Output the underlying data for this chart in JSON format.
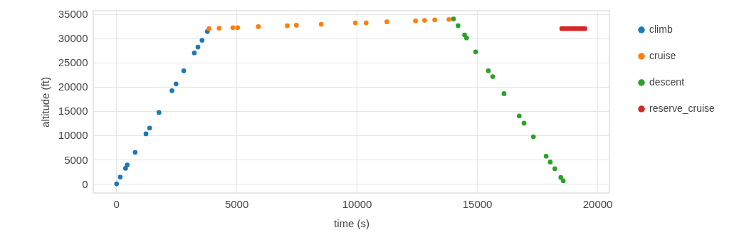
{
  "chart_data": {
    "type": "scatter",
    "xlabel": "time (s)",
    "ylabel": "altitude (ft)",
    "xlim": [
      -950,
      20500
    ],
    "ylim": [
      -1900,
      35700
    ],
    "xticks": [
      0,
      5000,
      10000,
      15000,
      20000
    ],
    "yticks": [
      0,
      5000,
      10000,
      15000,
      20000,
      25000,
      30000,
      35000
    ],
    "grid": true,
    "legend": "right",
    "marker": "circle",
    "series": [
      {
        "name": "climb",
        "color": "#1f77b4",
        "x": [
          20,
          170,
          390,
          460,
          790,
          1240,
          1390,
          1780,
          2320,
          2490,
          2810,
          3250,
          3400,
          3570,
          3790
        ],
        "values": [
          0,
          1400,
          3200,
          3900,
          6500,
          10300,
          11500,
          14700,
          19200,
          20600,
          23300,
          27000,
          28200,
          29600,
          31400
        ]
      },
      {
        "name": "cruise",
        "color": "#ff7f0e",
        "x": [
          3860,
          4280,
          4850,
          5050,
          5910,
          7110,
          7490,
          8520,
          9940,
          10390,
          11250,
          12440,
          12820,
          13240,
          13830
        ],
        "values": [
          32000,
          32100,
          32200,
          32200,
          32400,
          32600,
          32700,
          32900,
          33200,
          33200,
          33400,
          33600,
          33700,
          33800,
          33900
        ]
      },
      {
        "name": "descent",
        "color": "#2ca02c",
        "x": [
          14020,
          14210,
          14480,
          14560,
          14940,
          15470,
          15650,
          16120,
          16750,
          16950,
          17340,
          17870,
          18040,
          18230,
          18480,
          18580
        ],
        "values": [
          34000,
          32600,
          30700,
          30100,
          27200,
          23300,
          22100,
          18600,
          14000,
          12500,
          9700,
          5700,
          4500,
          3100,
          1300,
          600
        ]
      },
      {
        "name": "reserve_cruise",
        "color": "#d62728",
        "x": [
          18520,
          18630,
          18740,
          18850,
          18960,
          19060,
          19170,
          19280,
          19380,
          19480
        ],
        "values": [
          32000,
          32000,
          32000,
          32000,
          32000,
          32000,
          32000,
          32000,
          32000,
          32000
        ]
      }
    ]
  }
}
